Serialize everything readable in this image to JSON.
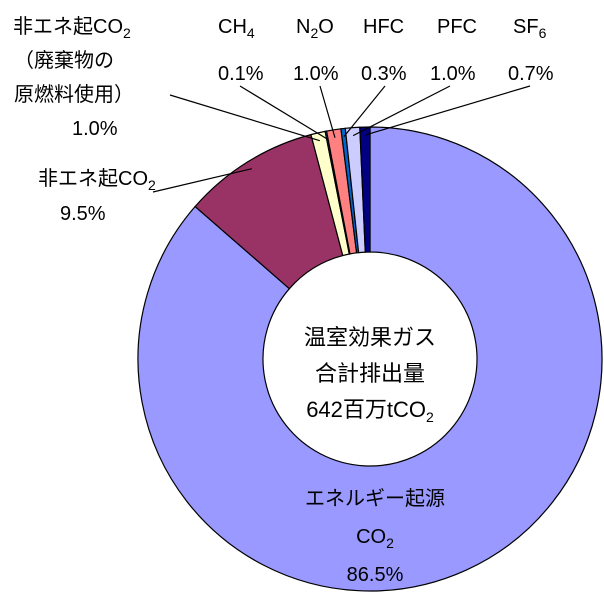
{
  "chart_data": {
    "type": "pie",
    "variant": "donut",
    "center_label": {
      "line1": "温室効果ガス",
      "line2": "合計排出量",
      "line3_main": "642百万tCO",
      "line3_sub": "2"
    },
    "series": [
      {
        "name": "エネルギー起源CO2",
        "value": 86.5,
        "color": "#9999FF",
        "label": {
          "l1": "エネルギー起源",
          "l2_main": "CO",
          "l2_sub": "2",
          "pct": "86.5%"
        }
      },
      {
        "name": "非エネ起CO2",
        "value": 9.5,
        "color": "#993366",
        "label": {
          "main": "非エネ起CO",
          "sub": "2",
          "pct": "9.5%"
        }
      },
      {
        "name": "非エネ起CO2（廃棄物の原燃料使用）",
        "value": 1.0,
        "color": "#FFFFCC",
        "label": {
          "l1_main": "非エネ起CO",
          "l1_sub": "2",
          "l2": "（廃棄物の",
          "l3": "原燃料使用）",
          "pct": "1.0%"
        }
      },
      {
        "name": "CH4",
        "value": 0.1,
        "color": "#3366FF",
        "label": {
          "main": "CH",
          "sub": "4",
          "pct": "0.1%"
        }
      },
      {
        "name": "N2O",
        "value": 1.0,
        "color": "#FF8080",
        "label": {
          "main": "N",
          "sub": "2",
          "tail": "O",
          "pct": "1.0%"
        }
      },
      {
        "name": "HFC",
        "value": 0.3,
        "color": "#0066CC",
        "label": {
          "main": "HFC",
          "pct": "0.3%"
        }
      },
      {
        "name": "PFC",
        "value": 1.0,
        "color": "#CCCCFF",
        "label": {
          "main": "PFC",
          "pct": "1.0%"
        }
      },
      {
        "name": "SF6",
        "value": 0.7,
        "color": "#000080",
        "label": {
          "main": "SF",
          "sub": "6",
          "pct": "0.7%"
        }
      }
    ]
  }
}
